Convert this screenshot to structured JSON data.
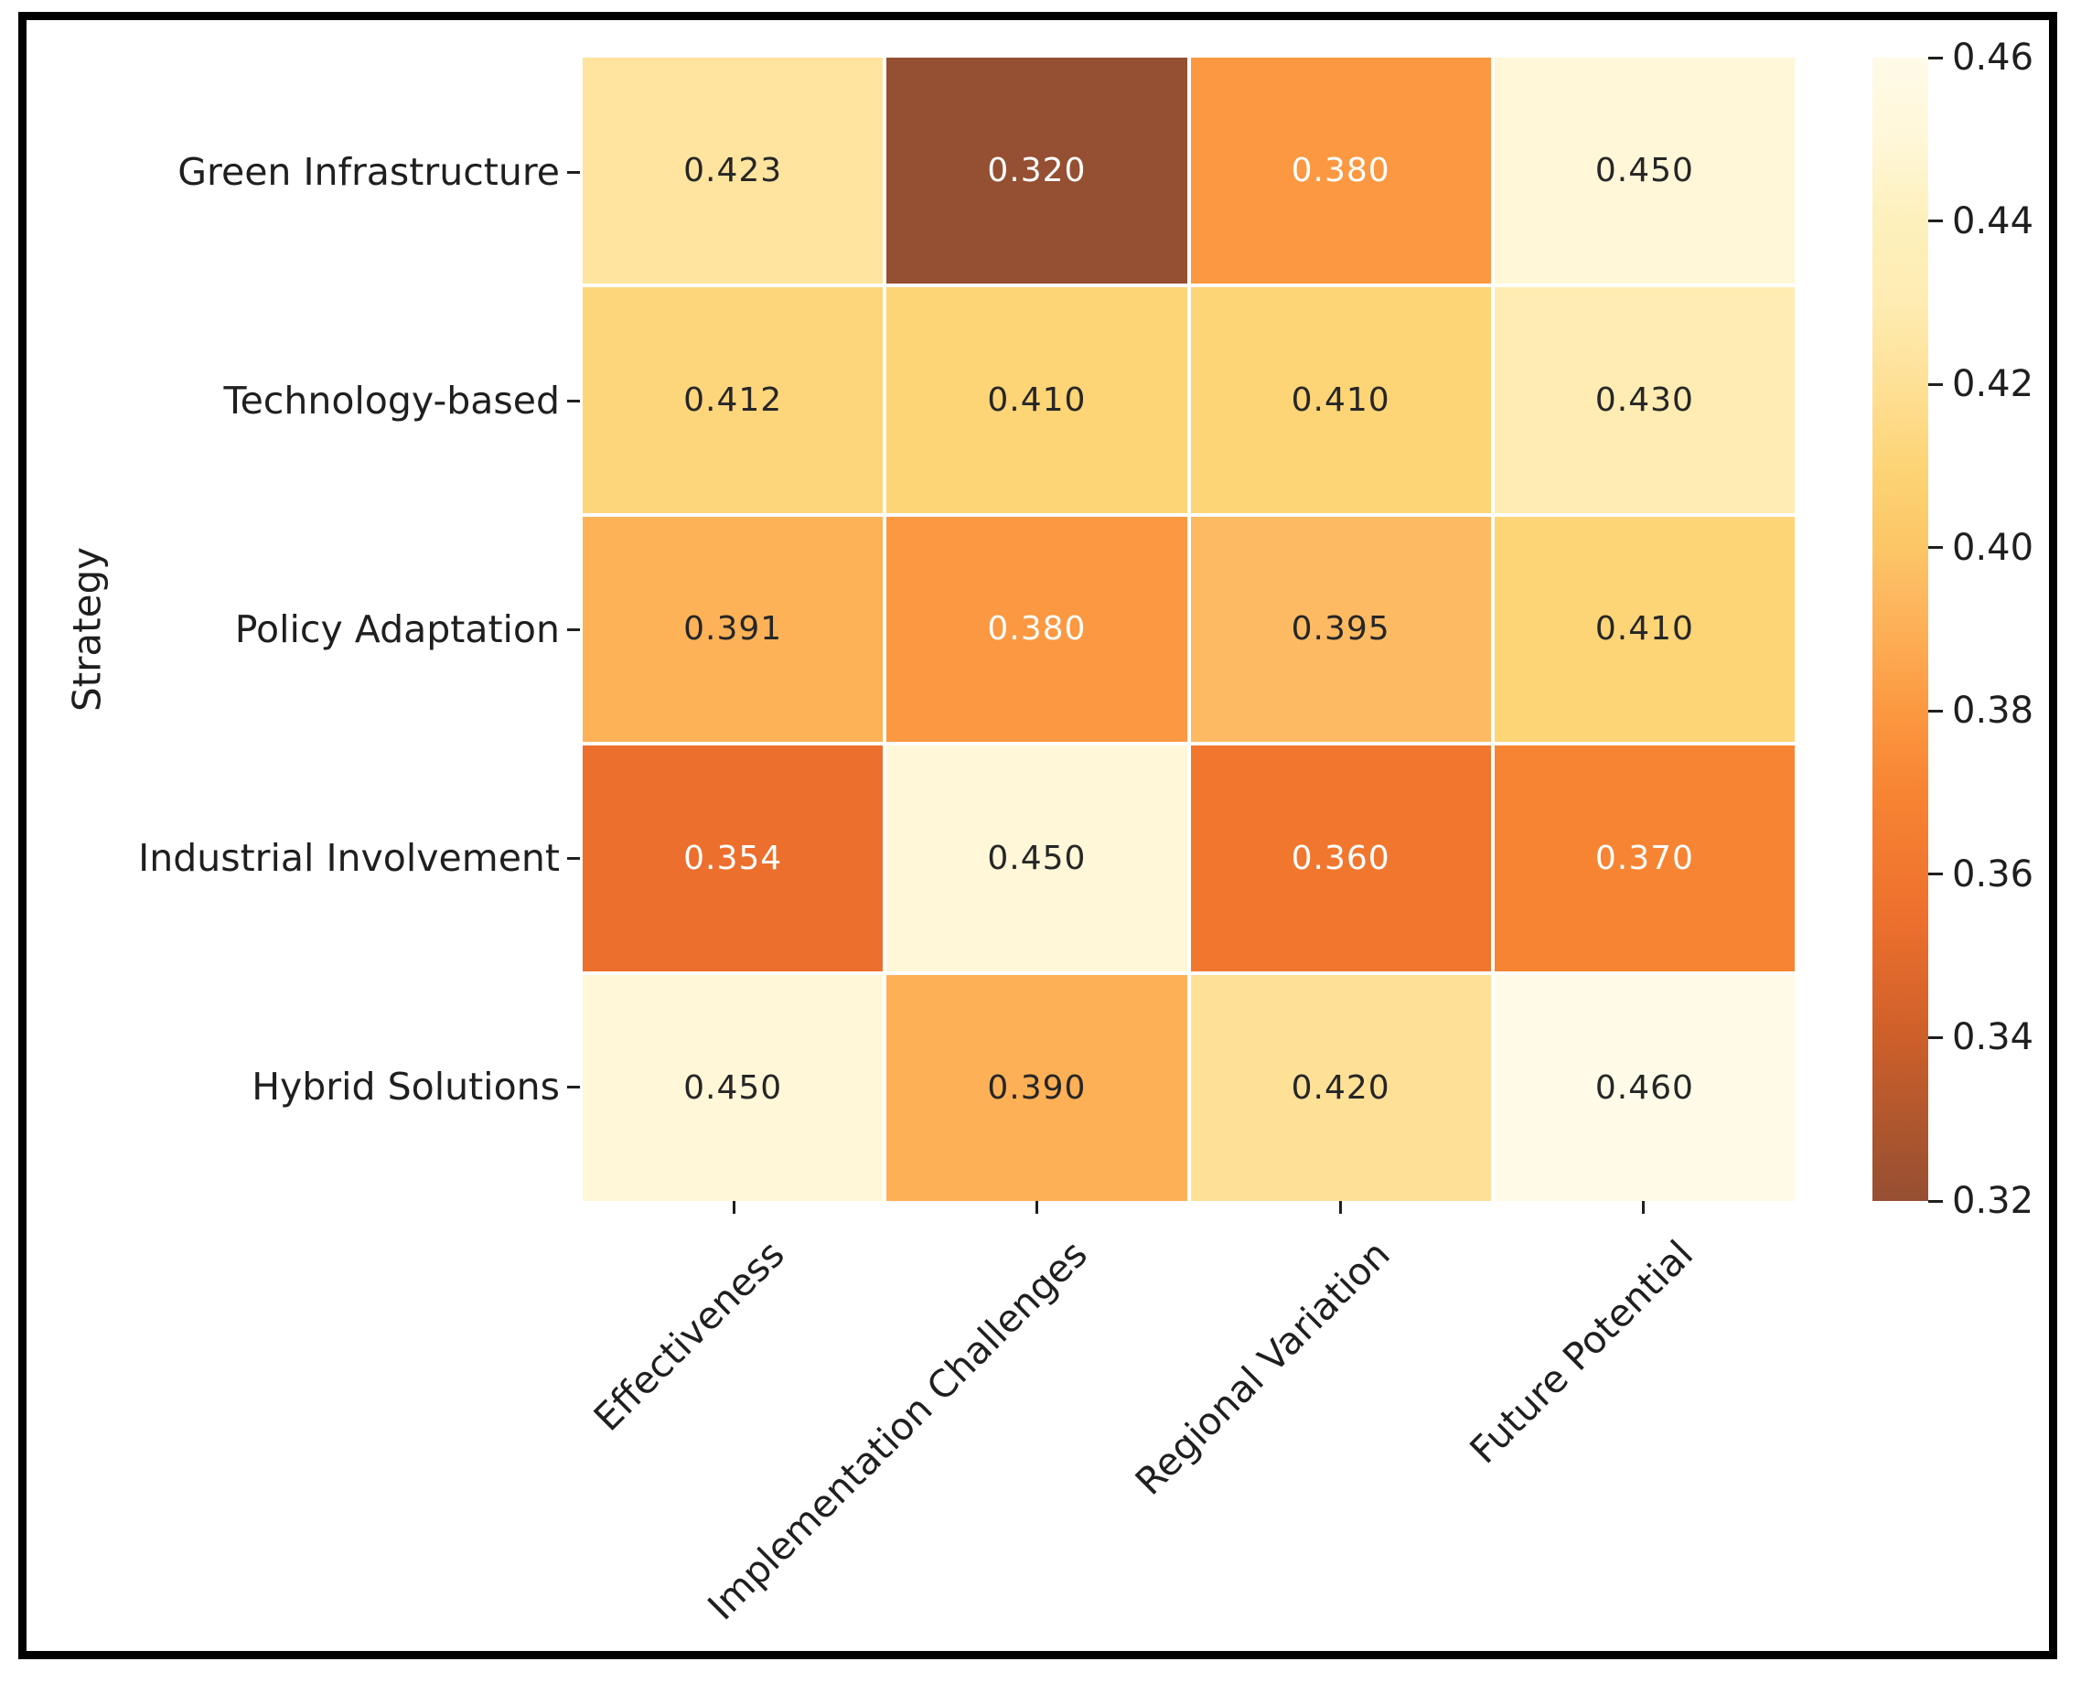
{
  "chart_data": {
    "type": "heatmap",
    "title": "",
    "xlabel": "",
    "ylabel": "Strategy",
    "rows": [
      "Green Infrastructure",
      "Technology-based",
      "Policy Adaptation",
      "Industrial Involvement",
      "Hybrid Solutions"
    ],
    "columns": [
      "Effectiveness",
      "Implementation Challenges",
      "Regional Variation",
      "Future Potential"
    ],
    "values": [
      [
        0.423,
        0.32,
        0.38,
        0.45
      ],
      [
        0.412,
        0.41,
        0.41,
        0.43
      ],
      [
        0.391,
        0.38,
        0.395,
        0.41
      ],
      [
        0.354,
        0.45,
        0.36,
        0.37
      ],
      [
        0.45,
        0.39,
        0.42,
        0.46
      ]
    ],
    "annotation_decimals": 3,
    "vmin": 0.32,
    "vmax": 0.46,
    "colorbar_ticks": [
      "0.46",
      "0.44",
      "0.42",
      "0.40",
      "0.38",
      "0.36",
      "0.34",
      "0.32"
    ],
    "colorbar_position": "right",
    "grid": false
  },
  "style": {
    "colormap_stops": [
      [
        0.32,
        "#954F32"
      ],
      [
        0.34,
        "#CD5F2A"
      ],
      [
        0.354,
        "#EC6F2D"
      ],
      [
        0.36,
        "#F1772F"
      ],
      [
        0.37,
        "#F78433"
      ],
      [
        0.38,
        "#FC9841"
      ],
      [
        0.39,
        "#FDB056"
      ],
      [
        0.395,
        "#FDBA62"
      ],
      [
        0.4,
        "#FCC665"
      ],
      [
        0.41,
        "#FDD476"
      ],
      [
        0.42,
        "#FEE096"
      ],
      [
        0.43,
        "#FEECB2"
      ],
      [
        0.44,
        "#FDF0BC"
      ],
      [
        0.45,
        "#FFF7D8"
      ],
      [
        0.46,
        "#FFFBE8"
      ]
    ],
    "annotation_dark": "#262626",
    "annotation_light": "#FFFFFF",
    "label_color": "#1F1F1F",
    "cell_gap_color": "#FFFFFF",
    "frame_color": "#000000",
    "background": "#FFFFFF"
  }
}
